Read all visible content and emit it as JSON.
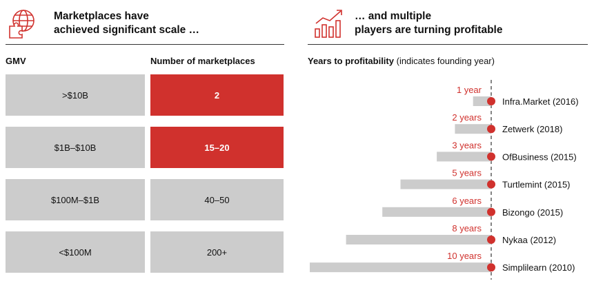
{
  "left": {
    "headline": [
      "Marketplaces have",
      "achieved significant scale …"
    ],
    "icon": "globe-puzzle-icon",
    "gmv_header": "GMV",
    "count_header": "Number of marketplaces",
    "rows": [
      {
        "gmv": ">$10B",
        "count": "2",
        "highlight": true
      },
      {
        "gmv": "$1B–$10B",
        "count": "15–20",
        "highlight": true
      },
      {
        "gmv": "$100M–$1B",
        "count": "40–50",
        "highlight": false
      },
      {
        "gmv": "<$100M",
        "count": "200+",
        "highlight": false
      }
    ]
  },
  "right": {
    "headline": [
      "… and multiple",
      "players are turning profitable"
    ],
    "icon": "rising-bar-chart-icon",
    "chart_header": "Years to profitability",
    "chart_header_note": "(indicates founding year)"
  },
  "colors": {
    "accent": "#d0312d",
    "bar": "#cccccc"
  },
  "chart_data": {
    "type": "bar",
    "orientation": "horizontal",
    "title": "Years to profitability (indicates founding year)",
    "categories": [
      "Infra.Market (2016)",
      "Zetwerk (2018)",
      "OfBusiness (2015)",
      "Turtlemint (2015)",
      "Bizongo (2015)",
      "Nykaa (2012)",
      "Simplilearn (2010)"
    ],
    "values": [
      1,
      2,
      3,
      5,
      6,
      8,
      10
    ],
    "value_labels": [
      "1 year",
      "2 years",
      "3 years",
      "5 years",
      "6 years",
      "8 years",
      "10 years"
    ],
    "xlim": [
      0,
      10
    ],
    "grid": false,
    "legend": "none"
  }
}
